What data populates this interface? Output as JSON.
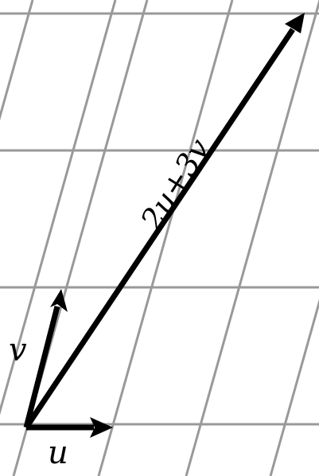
{
  "diagram": {
    "labels": {
      "u": "u",
      "v": "v",
      "sum": "2u+3v"
    },
    "colors": {
      "grid": "#999999",
      "vectors": "#000000",
      "background": "#ffffff"
    }
  }
}
